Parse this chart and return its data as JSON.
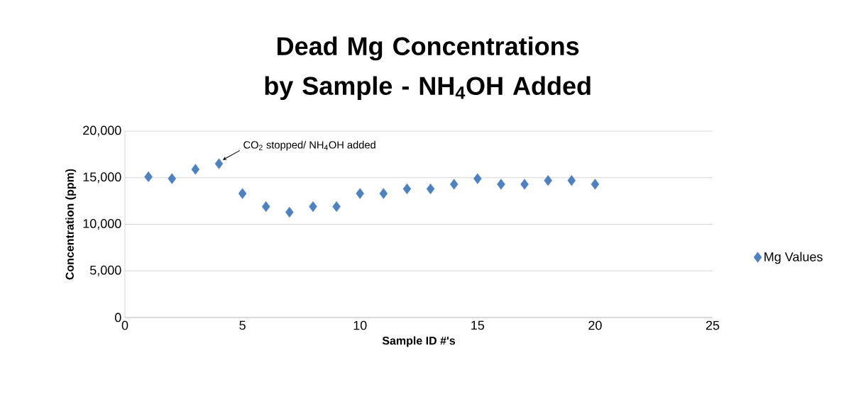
{
  "chart_data": {
    "type": "scatter",
    "title": "Dead Mg Concentrations by Sample - NH$_{4}$OH Added",
    "xlabel": "Sample ID #'s",
    "ylabel": "Concentration (ppm)",
    "x": [
      1,
      2,
      3,
      4,
      5,
      6,
      7,
      8,
      9,
      10,
      11,
      12,
      13,
      14,
      15,
      16,
      17,
      18,
      19,
      20
    ],
    "series": [
      {
        "name": "Mg Values",
        "color": "#4f81bd",
        "values": [
          15100,
          14900,
          15900,
          16500,
          13300,
          11900,
          11300,
          11900,
          11900,
          13300,
          13300,
          13800,
          13800,
          14300,
          14900,
          14300,
          14300,
          14700,
          14700,
          14300
        ]
      }
    ],
    "xlim": [
      0,
      25
    ],
    "xticks": [
      0,
      5,
      10,
      15,
      20,
      25
    ],
    "ylim": [
      0,
      20000
    ],
    "yticks": [
      {
        "value": 0,
        "label": "0"
      },
      {
        "value": 5000,
        "label": "5,000"
      },
      {
        "value": 10000,
        "label": "10,000"
      },
      {
        "value": 15000,
        "label": "15,000"
      },
      {
        "value": 20000,
        "label": "20,000"
      }
    ],
    "annotations": [
      {
        "text": "CO$_{2}$ stopped/ NH$_{4}$OH added",
        "x": 4,
        "y": 16500
      }
    ],
    "grid": "y",
    "legend": "right",
    "marker": "diamond"
  }
}
